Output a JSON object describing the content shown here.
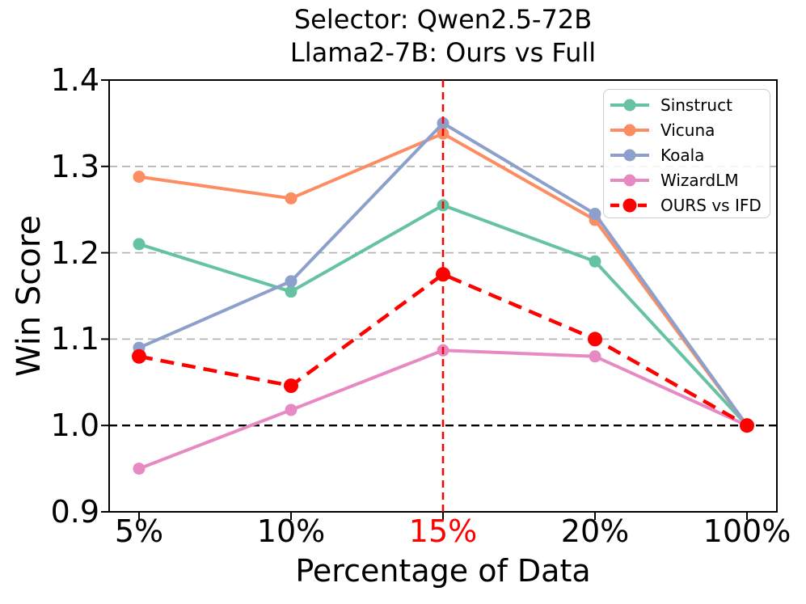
{
  "chart": {
    "title_line1": "Selector: Qwen2.5-72B",
    "title_line2": "Llama2-7B: Ours vs Full",
    "xlabel": "Percentage of Data",
    "ylabel": "Win Score"
  },
  "chart_data": {
    "type": "line",
    "categories": [
      "5%",
      "10%",
      "15%",
      "20%",
      "100%"
    ],
    "series": [
      {
        "name": "Sinstruct",
        "color": "#66c2a5",
        "dashed": false,
        "values": [
          1.21,
          1.155,
          1.255,
          1.19,
          1.0
        ]
      },
      {
        "name": "Vicuna",
        "color": "#fc8d62",
        "dashed": false,
        "values": [
          1.288,
          1.263,
          1.338,
          1.238,
          1.0
        ]
      },
      {
        "name": "Koala",
        "color": "#8da0cb",
        "dashed": false,
        "values": [
          1.09,
          1.167,
          1.35,
          1.245,
          1.0
        ]
      },
      {
        "name": "WizardLM",
        "color": "#e78ac3",
        "dashed": false,
        "values": [
          0.95,
          1.018,
          1.087,
          1.08,
          1.0
        ]
      },
      {
        "name": "OURS vs IFD",
        "color": "#ff0000",
        "dashed": true,
        "values": [
          1.08,
          1.046,
          1.175,
          1.1,
          1.0
        ]
      }
    ],
    "ylim": [
      0.9,
      1.4
    ],
    "y_ticks": [
      0.9,
      1.0,
      1.1,
      1.2,
      1.3,
      1.4
    ],
    "gridlines_y": [
      1.1,
      1.2,
      1.3
    ],
    "reference_line_y": 1.0,
    "highlight_x": {
      "label": "15%",
      "index": 2,
      "color": "#ff0000"
    },
    "tick_label_color": "#000000",
    "grid": true,
    "legend_position": "upper right"
  }
}
